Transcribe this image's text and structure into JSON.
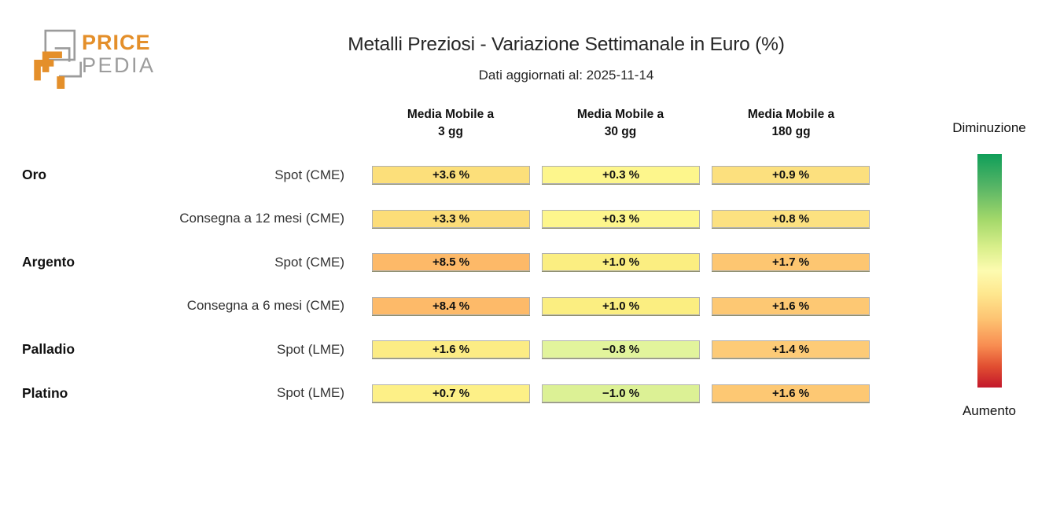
{
  "logo": {
    "line1": "PRICE",
    "line2": "PEDIA",
    "orange": "#e48f2a",
    "gray": "#9c9c9c"
  },
  "header": {
    "title": "Metalli Preziosi - Variazione Settimanale in Euro (%)",
    "subtitle": "Dati aggiornati al: 2025-11-14"
  },
  "chart_data": {
    "type": "heatmap",
    "title": "Metalli Preziosi - Variazione Settimanale in Euro (%)",
    "subtitle": "Dati aggiornati al: 2025-11-14",
    "unit": "%",
    "columns": [
      "Media Mobile a\n3 gg",
      "Media Mobile a\n30 gg",
      "Media Mobile a\n180 gg"
    ],
    "rows": [
      {
        "group": "Oro",
        "label": "Spot (CME)",
        "values": [
          3.6,
          0.3,
          0.9
        ],
        "display": [
          "+3.6 %",
          "+0.3 %",
          "+0.9 %"
        ],
        "colors": [
          "#fcdf7a",
          "#fdf68c",
          "#fce07e"
        ]
      },
      {
        "group": "",
        "label": "Consegna a 12 mesi (CME)",
        "values": [
          3.3,
          0.3,
          0.8
        ],
        "display": [
          "+3.3 %",
          "+0.3 %",
          "+0.8 %"
        ],
        "colors": [
          "#fcdd78",
          "#fdf68c",
          "#fce180"
        ]
      },
      {
        "group": "Argento",
        "label": "Spot (CME)",
        "values": [
          8.5,
          1.0,
          1.7
        ],
        "display": [
          "+8.5 %",
          "+1.0 %",
          "+1.7 %"
        ],
        "colors": [
          "#fdb968",
          "#fbee81",
          "#fdc671"
        ]
      },
      {
        "group": "",
        "label": "Consegna a 6 mesi (CME)",
        "values": [
          8.4,
          1.0,
          1.6
        ],
        "display": [
          "+8.4 %",
          "+1.0 %",
          "+1.6 %"
        ],
        "colors": [
          "#fdba69",
          "#fbee81",
          "#fdc873"
        ]
      },
      {
        "group": "Palladio",
        "label": "Spot (LME)",
        "values": [
          1.6,
          -0.8,
          1.4
        ],
        "display": [
          "+1.6 %",
          "−0.8 %",
          "+1.4 %"
        ],
        "colors": [
          "#fcec84",
          "#e2f49c",
          "#fdcb77"
        ]
      },
      {
        "group": "Platino",
        "label": "Spot (LME)",
        "values": [
          0.7,
          -1.0,
          1.6
        ],
        "display": [
          "+0.7 %",
          "−1.0 %",
          "+1.6 %"
        ],
        "colors": [
          "#fdf087",
          "#dcf195",
          "#fdc873"
        ]
      }
    ],
    "legend": {
      "top_label": "Diminuzione",
      "bottom_label": "Aumento",
      "gradient_stops": [
        "#0f9e59 0%",
        "#57b566 14%",
        "#a3d86a 28%",
        "#d9ef8b 40%",
        "#fdfbb0 50%",
        "#fee78e 60%",
        "#fdc271 71%",
        "#f88d51 82%",
        "#e14e31 91%",
        "#c3182b 100%"
      ]
    }
  }
}
